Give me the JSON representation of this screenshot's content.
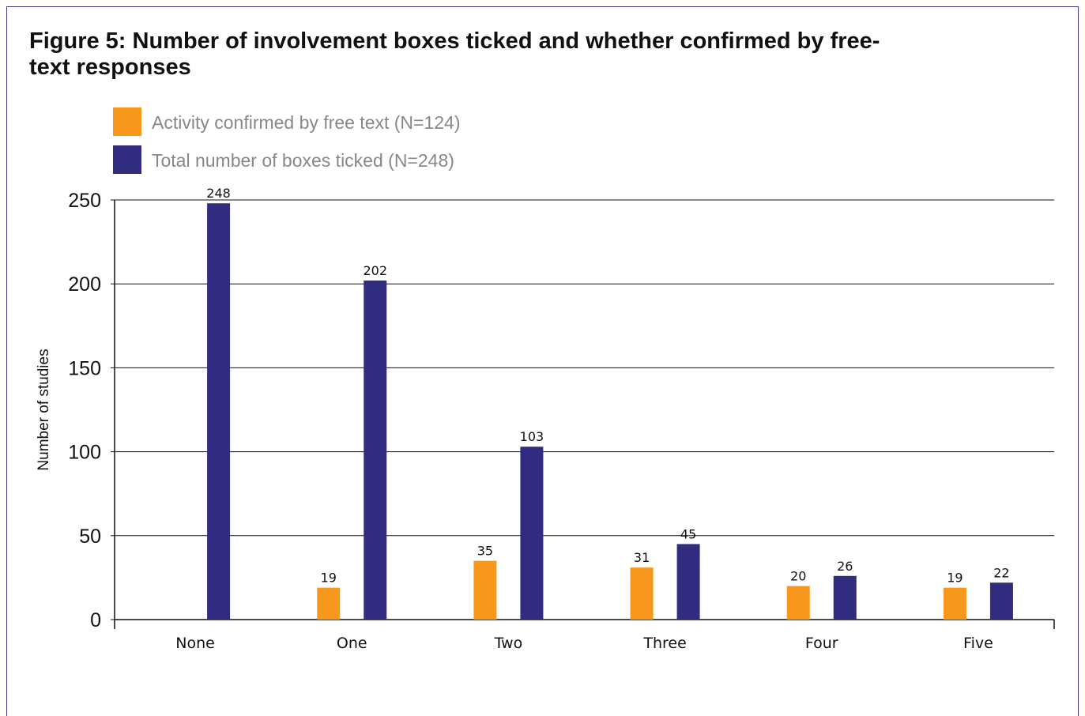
{
  "chart_data": {
    "type": "bar",
    "title": "Figure 5: Number of involvement boxes ticked and whether confirmed by free-text responses",
    "xlabel": "",
    "ylabel": "Number of studies",
    "ylim": [
      0,
      250
    ],
    "yticks": [
      "0",
      "50",
      "100",
      "150",
      "200",
      "250"
    ],
    "grid": true,
    "legend_position": "top-left",
    "categories": [
      "None",
      "One",
      "Two",
      "Three",
      "Four",
      "Five"
    ],
    "series": [
      {
        "name": "Activity confirmed by free text (N=124)",
        "color": "#f7981d",
        "values": [
          null,
          19,
          35,
          31,
          20,
          19
        ]
      },
      {
        "name": "Total number of boxes ticked (N=248)",
        "color": "#312c7f",
        "values": [
          248,
          202,
          103,
          45,
          26,
          22
        ]
      }
    ]
  },
  "frame_color": "#3d3a8a"
}
